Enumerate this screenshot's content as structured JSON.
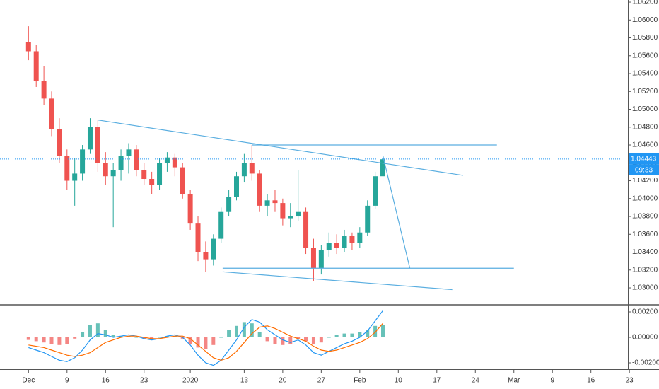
{
  "chart_data": [
    {
      "type": "candlestick",
      "x": [
        0,
        1,
        2,
        3,
        4,
        5,
        6,
        7,
        8,
        9,
        10,
        11,
        12,
        13,
        14,
        15,
        16,
        17,
        18,
        19,
        20,
        21,
        22,
        23,
        24,
        25,
        26,
        27,
        28,
        29,
        30,
        31,
        32,
        33,
        34,
        35,
        36,
        37,
        38,
        39,
        40,
        41,
        42,
        43,
        44,
        45,
        46
      ],
      "open": [
        1.0575,
        1.0565,
        1.0532,
        1.0512,
        1.0478,
        1.0448,
        1.042,
        1.0428,
        1.0455,
        1.048,
        1.044,
        1.0425,
        1.0432,
        1.0448,
        1.0455,
        1.0432,
        1.0422,
        1.0415,
        1.044,
        1.0446,
        1.0435,
        1.0405,
        1.0372,
        1.034,
        1.0332,
        1.0355,
        1.0385,
        1.0402,
        1.0425,
        1.044,
        1.0428,
        1.0392,
        1.0398,
        1.0395,
        1.0378,
        1.038,
        1.0385,
        1.0345,
        1.0322,
        1.0342,
        1.035,
        1.0345,
        1.0358,
        1.035,
        1.0362,
        1.0392,
        1.0425
      ],
      "high": [
        1.0593,
        1.0572,
        1.0548,
        1.052,
        1.049,
        1.0455,
        1.0445,
        1.046,
        1.049,
        1.0488,
        1.0452,
        1.044,
        1.0455,
        1.0462,
        1.046,
        1.044,
        1.043,
        1.0445,
        1.0452,
        1.045,
        1.044,
        1.041,
        1.038,
        1.0352,
        1.036,
        1.039,
        1.041,
        1.043,
        1.045,
        1.046,
        1.0432,
        1.0405,
        1.041,
        1.04,
        1.0395,
        1.0432,
        1.039,
        1.0355,
        1.0348,
        1.0362,
        1.036,
        1.0365,
        1.0362,
        1.0368,
        1.0398,
        1.043,
        1.0448
      ],
      "low": [
        1.0555,
        1.0525,
        1.0505,
        1.047,
        1.044,
        1.041,
        1.0392,
        1.042,
        1.045,
        1.043,
        1.0415,
        1.0368,
        1.042,
        1.0428,
        1.0425,
        1.0415,
        1.0405,
        1.041,
        1.043,
        1.0425,
        1.04,
        1.0365,
        1.033,
        1.0318,
        1.0325,
        1.035,
        1.038,
        1.0398,
        1.0418,
        1.042,
        1.0385,
        1.038,
        1.0385,
        1.037,
        1.0368,
        1.0375,
        1.0338,
        1.0308,
        1.0315,
        1.0335,
        1.0338,
        1.034,
        1.0342,
        1.0345,
        1.0358,
        1.0388,
        1.042
      ],
      "close": [
        1.0565,
        1.0532,
        1.0512,
        1.0478,
        1.0448,
        1.042,
        1.0428,
        1.0455,
        1.048,
        1.044,
        1.0425,
        1.0432,
        1.0448,
        1.0455,
        1.0432,
        1.0422,
        1.0415,
        1.044,
        1.0446,
        1.0435,
        1.0405,
        1.0372,
        1.034,
        1.0332,
        1.0355,
        1.0385,
        1.0402,
        1.0425,
        1.044,
        1.0428,
        1.0392,
        1.0398,
        1.0395,
        1.0378,
        1.038,
        1.0385,
        1.0345,
        1.0322,
        1.0342,
        1.035,
        1.0345,
        1.0358,
        1.035,
        1.0362,
        1.0392,
        1.0425,
        1.0444
      ],
      "up_color": "#26a69a",
      "down_color": "#ef5350",
      "xlim": [
        -3.7,
        77.8
      ],
      "xticks": [
        {
          "value": 0,
          "label": "Dec"
        },
        {
          "value": 5,
          "label": "9"
        },
        {
          "value": 10,
          "label": "16"
        },
        {
          "value": 15,
          "label": "23"
        },
        {
          "value": 21,
          "label": "2020"
        },
        {
          "value": 28,
          "label": "13"
        },
        {
          "value": 33,
          "label": "20"
        },
        {
          "value": 38,
          "label": "27"
        },
        {
          "value": 43,
          "label": "Feb"
        },
        {
          "value": 48,
          "label": "10"
        },
        {
          "value": 53,
          "label": "17"
        },
        {
          "value": 58,
          "label": "24"
        },
        {
          "value": 63,
          "label": "Mar"
        },
        {
          "value": 68,
          "label": "9"
        },
        {
          "value": 73,
          "label": "16"
        },
        {
          "value": 78,
          "label": "23"
        }
      ],
      "ylim": [
        1.02818,
        1.06224
      ],
      "yticks": [
        {
          "value": 1.03,
          "label": "1.03000"
        },
        {
          "value": 1.032,
          "label": "1.03200"
        },
        {
          "value": 1.034,
          "label": "1.03400"
        },
        {
          "value": 1.036,
          "label": "1.03600"
        },
        {
          "value": 1.038,
          "label": "1.03800"
        },
        {
          "value": 1.04,
          "label": "1.04000"
        },
        {
          "value": 1.042,
          "label": "1.04200"
        },
        {
          "value": 1.044,
          "label": "1.04400"
        },
        {
          "value": 1.046,
          "label": "1.04600"
        },
        {
          "value": 1.048,
          "label": "1.04800"
        },
        {
          "value": 1.05,
          "label": "1.05000"
        },
        {
          "value": 1.052,
          "label": "1.05200"
        },
        {
          "value": 1.054,
          "label": "1.05400"
        },
        {
          "value": 1.056,
          "label": "1.05600"
        },
        {
          "value": 1.058,
          "label": "1.05800"
        },
        {
          "value": 1.06,
          "label": "1.06000"
        },
        {
          "value": 1.062,
          "label": "1.06200"
        }
      ],
      "lines_color": "#5aaee0",
      "lines": [
        {
          "points": [
            [
              9,
              1.0488
            ],
            [
              56.4,
              1.0426
            ]
          ]
        },
        {
          "points": [
            [
              29,
              1.046
            ],
            [
              60.8,
              1.046
            ]
          ]
        },
        {
          "points": [
            [
              25.2,
              1.0322
            ],
            [
              63,
              1.0322
            ]
          ]
        },
        {
          "points": [
            [
              25.2,
              1.0318
            ],
            [
              55,
              1.0298
            ]
          ]
        },
        {
          "points": [
            [
              46,
              1.0448
            ],
            [
              49.5,
              1.0322
            ]
          ]
        }
      ],
      "last_price": {
        "value": 1.04443,
        "label": "1.04443"
      },
      "countdown": "09:33",
      "label_color": "#2196f3"
    },
    {
      "type": "macd",
      "ylim": [
        -0.0025,
        0.0025
      ],
      "yticks": [
        {
          "value": 0.002,
          "label": "0.00200"
        },
        {
          "value": 0,
          "label": "0.00000"
        },
        {
          "value": -0.002,
          "label": "-0.00200"
        }
      ],
      "up_color": "#26a69a",
      "down_color": "#ef5350",
      "series": [
        {
          "style": "histogram",
          "values": [
            -0.0002,
            -0.0003,
            -0.0004,
            -0.0005,
            -0.0006,
            -0.0005,
            -0.0001,
            0.0004,
            0.001,
            0.0011,
            0.0006,
            0.0002,
            0.0001,
            0.0001,
            0.0,
            -0.0001,
            -0.0001,
            0.0,
            0.0001,
            0.0001,
            -0.0001,
            -0.0005,
            -0.0008,
            -0.0009,
            -0.0006,
            0.0,
            0.0006,
            0.0009,
            0.0012,
            0.0011,
            0.0004,
            -0.0003,
            -0.0005,
            -0.0006,
            -0.0005,
            -0.0001,
            -0.0003,
            -0.0005,
            -0.0004,
            0.0,
            0.0002,
            0.0003,
            0.0003,
            0.0004,
            0.0006,
            0.0009,
            0.001
          ]
        },
        {
          "style": "line",
          "color": "#2196f3",
          "values": [
            -0.0008,
            -0.001,
            -0.0012,
            -0.0015,
            -0.0018,
            -0.0019,
            -0.0016,
            -0.001,
            -0.0002,
            0.0003,
            0.0002,
            0.0,
            0.0001,
            0.0002,
            0.0001,
            -0.0001,
            -0.0002,
            -0.0001,
            0.0001,
            0.0002,
            0.0,
            -0.0006,
            -0.0014,
            -0.002,
            -0.0022,
            -0.0018,
            -0.001,
            -0.0002,
            0.0008,
            0.0014,
            0.0012,
            0.0006,
            0.0002,
            -0.0002,
            -0.0004,
            -0.0002,
            -0.0006,
            -0.0012,
            -0.0014,
            -0.0011,
            -0.0008,
            -0.0005,
            -0.0003,
            0.0,
            0.0005,
            0.0013,
            0.0021
          ]
        },
        {
          "style": "line",
          "color": "#ff6d00",
          "values": [
            -0.0006,
            -0.0007,
            -0.0008,
            -0.001,
            -0.0012,
            -0.0014,
            -0.0015,
            -0.0014,
            -0.0012,
            -0.0008,
            -0.0004,
            -0.0002,
            0.0,
            0.0001,
            0.0001,
            0.0,
            -0.0001,
            -0.0001,
            0.0,
            0.0001,
            0.0001,
            -0.0001,
            -0.0006,
            -0.0011,
            -0.0016,
            -0.0018,
            -0.0016,
            -0.0011,
            -0.0004,
            0.0003,
            0.0008,
            0.0009,
            0.0007,
            0.0004,
            0.0001,
            -0.0001,
            -0.0003,
            -0.0007,
            -0.001,
            -0.0011,
            -0.001,
            -0.0008,
            -0.0006,
            -0.0004,
            -0.0001,
            0.0004,
            0.0011
          ]
        }
      ]
    }
  ]
}
